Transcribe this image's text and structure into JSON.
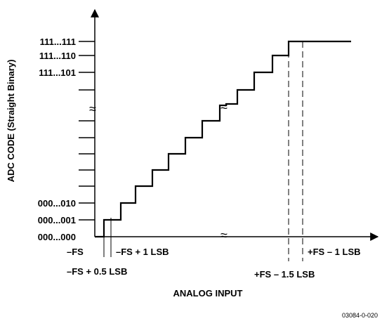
{
  "figure": {
    "y_axis_title": "ADC CODE (Straight Binary)",
    "x_axis_title": "ANALOG INPUT",
    "y_codes_top": [
      "111...111",
      "111...110",
      "111...101"
    ],
    "y_codes_bottom": [
      "000...010",
      "000...001",
      "000...000"
    ],
    "x_labels": {
      "neg_fs": "–FS",
      "neg_fs_plus_1lsb": "–FS + 1 LSB",
      "neg_fs_plus_half_lsb": "–FS + 0.5 LSB",
      "pos_fs_minus_1_5lsb": "+FS – 1.5 LSB",
      "pos_fs_minus_1lsb": "+FS – 1 LSB"
    },
    "break_mark": "≈",
    "figure_id": "03084-0-020"
  }
}
